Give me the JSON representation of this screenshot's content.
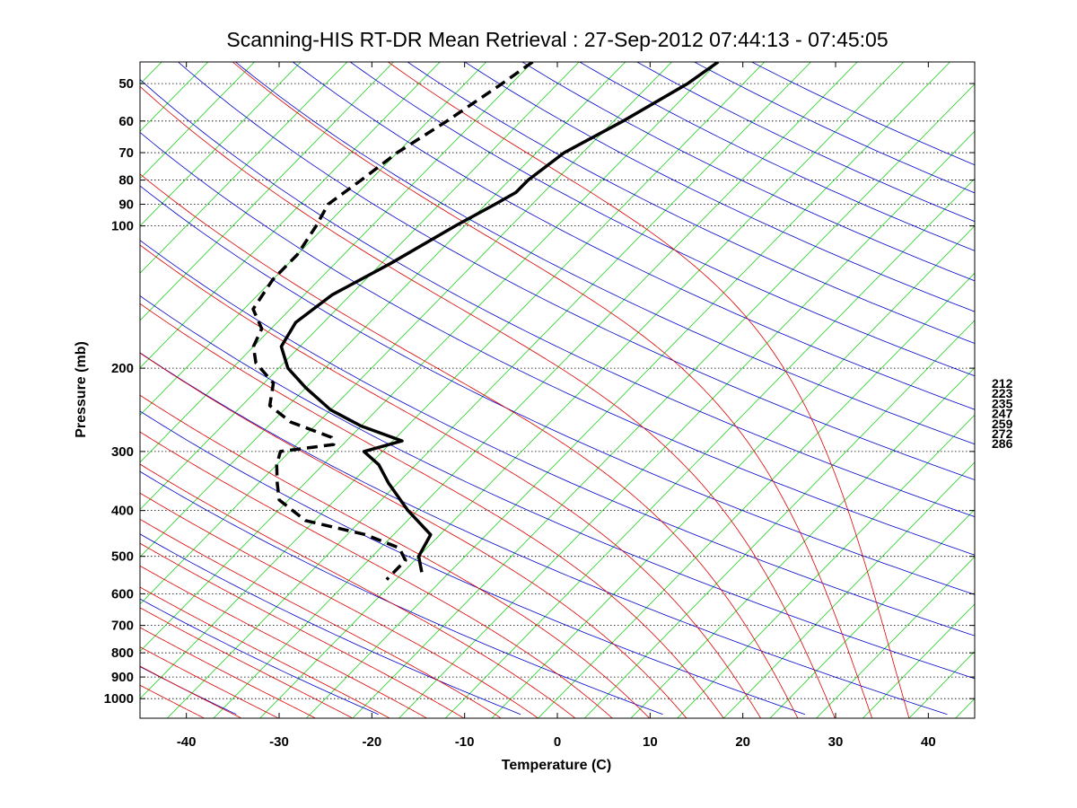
{
  "chart_data": {
    "type": "line",
    "title": "Scanning-HIS RT-DR Mean Retrieval : 27-Sep-2012 07:44:13 - 07:45:05",
    "xlabel": "Temperature (C)",
    "ylabel": "Pressure (mb)",
    "xlim": [
      -45,
      45
    ],
    "ylim": [
      1100,
      45
    ],
    "y_scale": "log",
    "grid": true,
    "x_ticks": [
      -40,
      -30,
      -20,
      -10,
      0,
      10,
      20,
      30,
      40
    ],
    "y_ticks": [
      50,
      60,
      70,
      80,
      90,
      100,
      200,
      300,
      400,
      500,
      600,
      700,
      800,
      900,
      1000
    ],
    "skew_t": true,
    "background_colors": {
      "isotherms": "#00cc00",
      "dry_adiabats": "#0000cc",
      "moist_adiabats": "#dd0000",
      "isobars": "#000000"
    },
    "theta_e_labels": [
      "212",
      "223",
      "235",
      "247",
      "259",
      "272",
      "286"
    ],
    "series": [
      {
        "style": "solid",
        "color": "#000000",
        "pressure": [
          45,
          50,
          60,
          70,
          80,
          85,
          90,
          100,
          120,
          140,
          160,
          180,
          200,
          220,
          245,
          265,
          285,
          300,
          320,
          350,
          400,
          450,
          500,
          540
        ],
        "temperature": [
          -50,
          -51,
          -54,
          -57,
          -58,
          -58,
          -59,
          -61,
          -64,
          -67,
          -68,
          -67,
          -64,
          -60,
          -55,
          -50,
          -44,
          -47,
          -44,
          -41,
          -36,
          -31,
          -30,
          -28
        ]
      },
      {
        "style": "dashed",
        "color": "#000000",
        "pressure": [
          45,
          50,
          60,
          70,
          80,
          90,
          100,
          115,
          130,
          150,
          165,
          180,
          195,
          215,
          240,
          260,
          280,
          290,
          300,
          320,
          350,
          380,
          420,
          450,
          480,
          510,
          540,
          560
        ],
        "temperature": [
          -70,
          -71,
          -73,
          -75,
          -76,
          -77,
          -76,
          -75,
          -75,
          -74,
          -71,
          -70,
          -68,
          -64,
          -62,
          -58,
          -52,
          -51,
          -56,
          -55,
          -53,
          -51,
          -46,
          -38,
          -33,
          -31,
          -31,
          -31
        ]
      }
    ]
  }
}
